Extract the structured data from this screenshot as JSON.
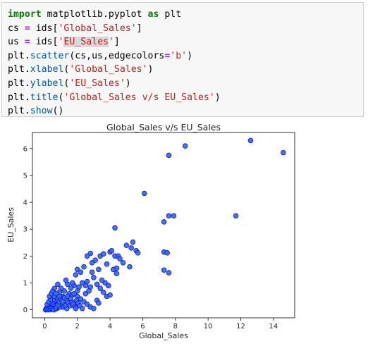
{
  "code_lines": [
    [
      {
        "c": "kw",
        "t": "import"
      },
      {
        "c": "",
        "t": " matplotlib.pyplot "
      },
      {
        "c": "kw",
        "t": "as"
      },
      {
        "c": "",
        "t": " plt"
      }
    ],
    [
      {
        "c": "",
        "t": "cs "
      },
      {
        "c": "op",
        "t": "="
      },
      {
        "c": "",
        "t": " ids["
      },
      {
        "c": "str",
        "t": "'Global_Sales'"
      },
      {
        "c": "",
        "t": "]"
      }
    ],
    [
      {
        "c": "",
        "t": "us "
      },
      {
        "c": "op",
        "t": "="
      },
      {
        "c": "",
        "t": " ids["
      },
      {
        "c": "str",
        "t": "'"
      },
      {
        "c": "str hl",
        "t": "EU_Sales"
      },
      {
        "c": "str",
        "t": "'"
      },
      {
        "c": "",
        "t": "]"
      }
    ],
    [
      {
        "c": "",
        "t": "plt."
      },
      {
        "c": "fn",
        "t": "scatter"
      },
      {
        "c": "",
        "t": "(cs,us,edgecolors"
      },
      {
        "c": "op",
        "t": "="
      },
      {
        "c": "str",
        "t": "'b'"
      },
      {
        "c": "",
        "t": ")"
      }
    ],
    [
      {
        "c": "",
        "t": "plt."
      },
      {
        "c": "fn",
        "t": "xlabel"
      },
      {
        "c": "",
        "t": "("
      },
      {
        "c": "str",
        "t": "'Global_Sales'"
      },
      {
        "c": "",
        "t": ")"
      }
    ],
    [
      {
        "c": "",
        "t": "plt."
      },
      {
        "c": "fn",
        "t": "ylabel"
      },
      {
        "c": "",
        "t": "("
      },
      {
        "c": "str",
        "t": "'EU_Sales'"
      },
      {
        "c": "",
        "t": ")"
      }
    ],
    [
      {
        "c": "",
        "t": "plt."
      },
      {
        "c": "fn",
        "t": "title"
      },
      {
        "c": "",
        "t": "("
      },
      {
        "c": "str",
        "t": "'Global_Sales v/s EU_Sales'"
      },
      {
        "c": "",
        "t": ")"
      }
    ],
    [
      {
        "c": "",
        "t": "plt."
      },
      {
        "c": "fn",
        "t": "show"
      },
      {
        "c": "",
        "t": "()"
      }
    ]
  ],
  "chart_data": {
    "type": "scatter",
    "title": "Global_Sales v/s EU_Sales",
    "xlabel": "Global_Sales",
    "ylabel": "EU_Sales",
    "xlim": [
      -0.75,
      15.3
    ],
    "ylim": [
      -0.3,
      6.6
    ],
    "xticks": [
      0,
      2,
      4,
      6,
      8,
      10,
      12,
      14
    ],
    "yticks": [
      0,
      1,
      2,
      3,
      4,
      5,
      6
    ],
    "grid": false,
    "marker_fill": "#3a6fd6",
    "marker_edge": "#0000ff",
    "points": [
      [
        12.6,
        6.3
      ],
      [
        8.6,
        6.1
      ],
      [
        7.6,
        5.75
      ],
      [
        14.6,
        5.85
      ],
      [
        6.1,
        4.33
      ],
      [
        7.6,
        3.5
      ],
      [
        7.9,
        3.5
      ],
      [
        7.3,
        3.27
      ],
      [
        11.7,
        3.5
      ],
      [
        4.3,
        3.05
      ],
      [
        5.4,
        2.52
      ],
      [
        5.3,
        2.3
      ],
      [
        5.6,
        2.2
      ],
      [
        5.7,
        2.12
      ],
      [
        7.3,
        2.15
      ],
      [
        7.5,
        2.12
      ],
      [
        4.0,
        2.15
      ],
      [
        4.1,
        2.2
      ],
      [
        4.3,
        2.0
      ],
      [
        4.5,
        2.0
      ],
      [
        3.4,
        2.0
      ],
      [
        3.6,
        2.08
      ],
      [
        2.8,
        2.1
      ],
      [
        2.6,
        2.0
      ],
      [
        3.1,
        1.85
      ],
      [
        2.9,
        1.75
      ],
      [
        7.3,
        1.48
      ],
      [
        7.6,
        1.38
      ],
      [
        5.2,
        1.6
      ],
      [
        4.4,
        1.55
      ],
      [
        3.3,
        1.5
      ],
      [
        2.0,
        1.5
      ],
      [
        2.2,
        1.4
      ],
      [
        1.9,
        1.3
      ],
      [
        4.8,
        1.75
      ],
      [
        3.8,
        1.7
      ],
      [
        3.0,
        1.2
      ],
      [
        2.6,
        1.05
      ],
      [
        3.7,
        1.0
      ],
      [
        3.9,
        0.9
      ],
      [
        4.2,
        1.5
      ],
      [
        4.4,
        1.35
      ],
      [
        3.2,
        0.95
      ],
      [
        2.8,
        0.85
      ],
      [
        2.5,
        0.9
      ],
      [
        2.3,
        1.0
      ],
      [
        2.1,
        0.85
      ],
      [
        1.8,
        0.9
      ],
      [
        1.6,
        0.8
      ],
      [
        1.4,
        0.95
      ],
      [
        1.2,
        0.7
      ],
      [
        1.0,
        0.8
      ],
      [
        0.9,
        0.65
      ],
      [
        1.5,
        0.6
      ],
      [
        1.7,
        0.55
      ],
      [
        2.0,
        0.5
      ],
      [
        2.2,
        0.4
      ],
      [
        2.4,
        0.3
      ],
      [
        2.6,
        0.2
      ],
      [
        2.8,
        0.1
      ],
      [
        3.2,
        0.35
      ],
      [
        3.3,
        0.25
      ],
      [
        3.0,
        0.05
      ],
      [
        3.8,
        0.5
      ],
      [
        4.0,
        0.55
      ],
      [
        3.6,
        0.65
      ],
      [
        1.1,
        0.5
      ],
      [
        1.3,
        0.35
      ],
      [
        0.8,
        0.45
      ],
      [
        0.7,
        0.3
      ],
      [
        0.6,
        0.5
      ],
      [
        0.5,
        0.35
      ],
      [
        0.4,
        0.25
      ],
      [
        0.3,
        0.15
      ],
      [
        0.2,
        0.1
      ],
      [
        0.1,
        0.05
      ],
      [
        0.15,
        0.2
      ],
      [
        0.25,
        0.3
      ],
      [
        0.35,
        0.4
      ],
      [
        0.45,
        0.1
      ],
      [
        0.55,
        0.2
      ],
      [
        0.65,
        0.15
      ],
      [
        0.75,
        0.05
      ],
      [
        0.85,
        0.25
      ],
      [
        0.95,
        0.1
      ],
      [
        1.05,
        0.2
      ],
      [
        1.15,
        0.1
      ],
      [
        1.25,
        0.15
      ],
      [
        1.35,
        0.05
      ],
      [
        1.45,
        0.25
      ],
      [
        1.55,
        0.15
      ],
      [
        1.65,
        0.3
      ],
      [
        1.75,
        0.2
      ],
      [
        1.85,
        0.1
      ],
      [
        1.95,
        0.35
      ],
      [
        2.05,
        0.25
      ],
      [
        2.15,
        0.15
      ],
      [
        2.3,
        0.05
      ],
      [
        0.05,
        0.0
      ],
      [
        0.12,
        0.02
      ],
      [
        0.2,
        0.0
      ],
      [
        0.28,
        0.03
      ],
      [
        0.35,
        0.01
      ],
      [
        0.42,
        0.05
      ],
      [
        0.5,
        0.02
      ],
      [
        0.58,
        0.0
      ],
      [
        0.66,
        0.06
      ],
      [
        0.74,
        0.12
      ],
      [
        0.82,
        0.18
      ],
      [
        0.9,
        0.3
      ],
      [
        1.0,
        0.4
      ],
      [
        1.1,
        0.3
      ],
      [
        1.2,
        0.45
      ],
      [
        1.4,
        0.5
      ],
      [
        1.6,
        0.42
      ],
      [
        1.8,
        0.6
      ],
      [
        2.0,
        0.7
      ],
      [
        0.3,
        0.5
      ],
      [
        0.4,
        0.6
      ],
      [
        0.5,
        0.7
      ],
      [
        0.6,
        0.8
      ],
      [
        0.7,
        0.6
      ],
      [
        0.9,
        0.5
      ],
      [
        1.9,
        0.05
      ],
      [
        2.5,
        0.6
      ],
      [
        2.7,
        0.7
      ],
      [
        3.4,
        0.8
      ],
      [
        3.5,
        1.1
      ],
      [
        2.9,
        1.4
      ],
      [
        2.4,
        1.6
      ],
      [
        1.3,
        1.1
      ],
      [
        0.8,
        0.95
      ],
      [
        1.7,
        1.0
      ],
      [
        4.6,
        1.9
      ],
      [
        5.0,
        2.4
      ]
    ]
  }
}
